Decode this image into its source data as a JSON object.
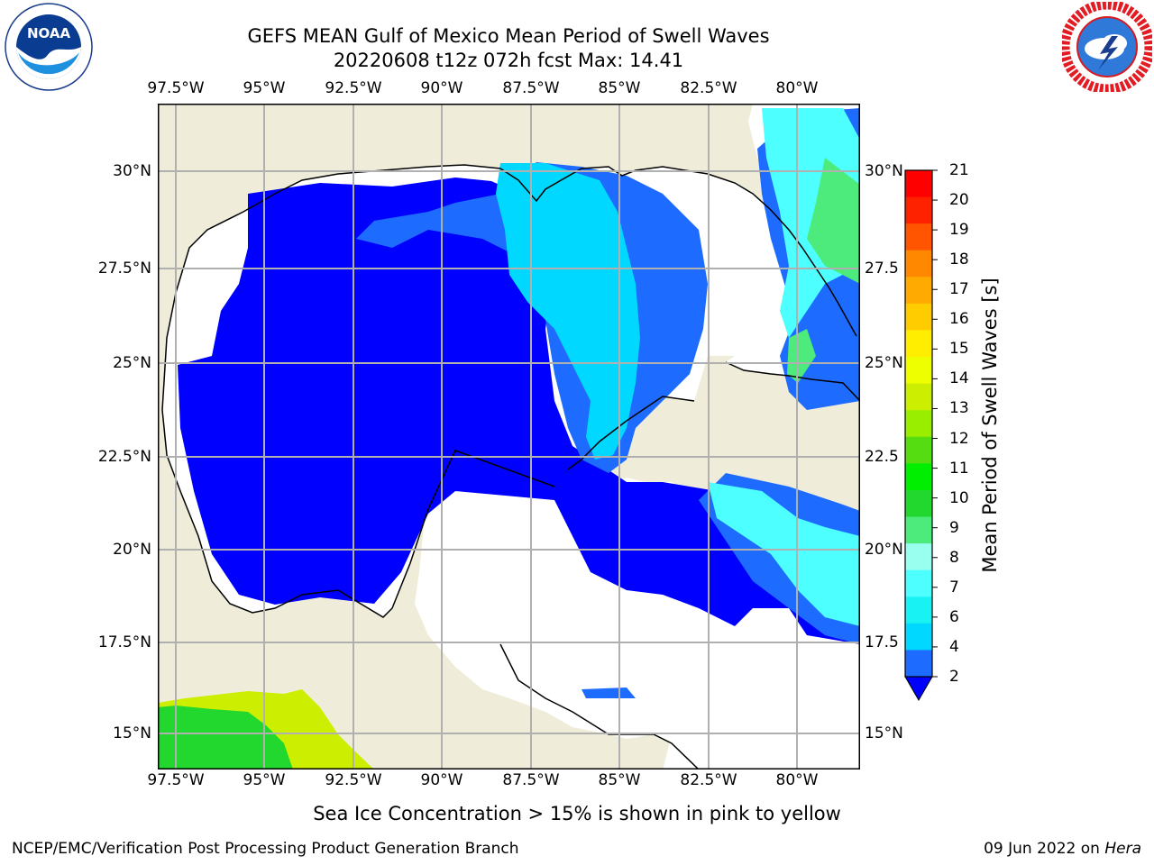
{
  "header": {
    "title_line1": "GEFS MEAN Gulf of Mexico Mean Period of Swell Waves",
    "title_line2": "20220608 t12z 072h fcst   Max: 14.41"
  },
  "logos": {
    "left": {
      "name": "noaa-logo",
      "text": "NOAA",
      "ring_text": "NATIONAL OCEANIC AND ATMOSPHERIC ADMINISTRATION · U.S. DEPARTMENT OF COMMERCE"
    },
    "right": {
      "name": "nws-logo",
      "ring_text": "NATIONAL WEATHER SERVICE"
    }
  },
  "map": {
    "lon_ticks": [
      "97.5°W",
      "95°W",
      "92.5°W",
      "90°W",
      "87.5°W",
      "85°W",
      "82.5°W",
      "80°W"
    ],
    "lat_ticks_left": [
      "30°N",
      "27.5°N",
      "25°N",
      "22.5°N",
      "20°N",
      "17.5°N",
      "15°N"
    ],
    "lat_ticks_right": [
      "30°N",
      "27.5",
      "25°N",
      "22.5",
      "20°N",
      "17.5",
      "15°N"
    ],
    "lon_range": [
      -98,
      -78.3
    ],
    "lat_range": [
      14,
      31.6
    ],
    "grid": true,
    "colors": {
      "land": "#efedd9",
      "ocean_nodata": "#ffffff",
      "grid": "#b0b0b0",
      "coast": "#000000"
    }
  },
  "colorbar": {
    "label": "Mean Period of Swell Waves [s]",
    "ticks": [
      "2",
      "4",
      "6",
      "7",
      "8",
      "9",
      "10",
      "11",
      "12",
      "13",
      "14",
      "15",
      "16",
      "17",
      "18",
      "19",
      "20",
      "21"
    ],
    "colors": [
      "#1e6cff",
      "#00d8ff",
      "#19f2f2",
      "#4dffff",
      "#99ffee",
      "#4dea7c",
      "#22d82e",
      "#00ee00",
      "#55dd11",
      "#99ee00",
      "#ccee00",
      "#eeff00",
      "#ffee00",
      "#ffcc00",
      "#ffaa00",
      "#ff8800",
      "#ff5500",
      "#ff2200",
      "#ff0000"
    ],
    "extend_color": "#0000ff"
  },
  "caption": "Sea Ice Concentration > 15% is shown in pink to yellow",
  "footer": {
    "left": "NCEP/EMC/Verification Post Processing Product Generation Branch",
    "right_date": "09 Jun 2022 on ",
    "right_host": "Hera"
  }
}
